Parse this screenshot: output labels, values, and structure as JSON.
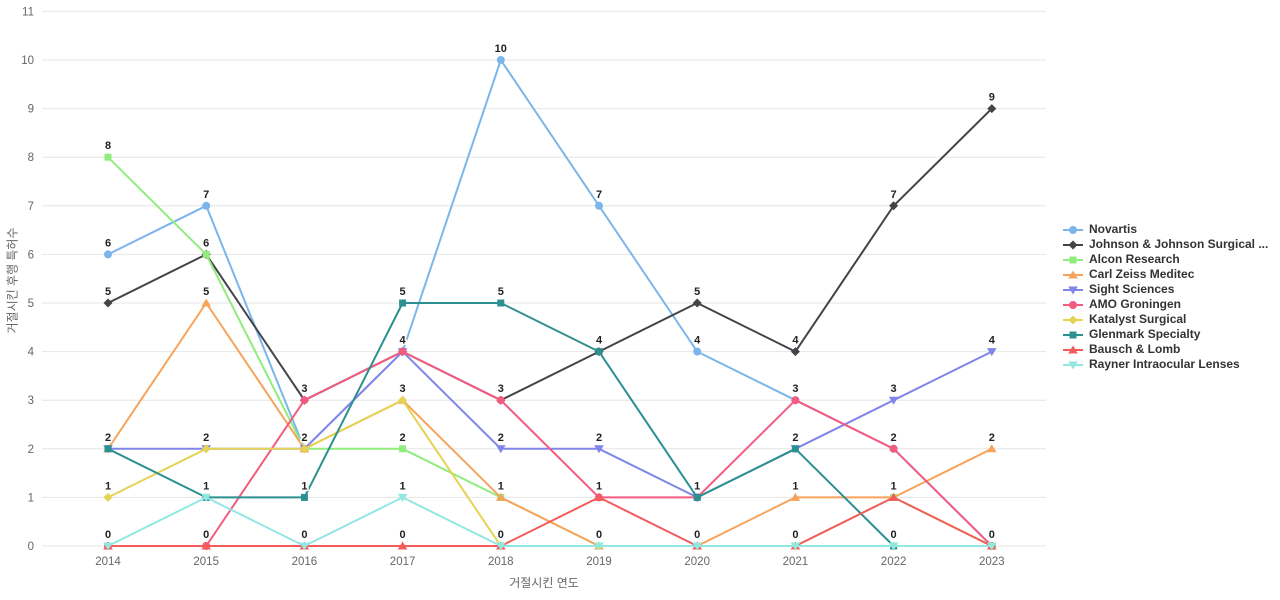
{
  "chart_data": {
    "type": "line",
    "title": "",
    "xlabel": "거절시킨 연도",
    "ylabel": "거절시킨 후행 특허수",
    "x": [
      2014,
      2015,
      2016,
      2017,
      2018,
      2019,
      2020,
      2021,
      2022,
      2023
    ],
    "ylim": [
      0,
      11
    ],
    "yticks": [
      0,
      1,
      2,
      3,
      4,
      5,
      6,
      7,
      8,
      9,
      10,
      11
    ],
    "grid": "horizontal",
    "legend_position": "right",
    "data_labels": true,
    "series": [
      {
        "name": "Novartis",
        "color": "#7cb5ec",
        "marker": "circle",
        "values": [
          6,
          7,
          2,
          4,
          10,
          7,
          4,
          3,
          2,
          0
        ]
      },
      {
        "name": "Johnson & Johnson Surgical ...",
        "color": "#434348",
        "marker": "diamond",
        "values": [
          5,
          6,
          3,
          4,
          3,
          4,
          5,
          4,
          7,
          9
        ]
      },
      {
        "name": "Alcon Research",
        "color": "#90ed7d",
        "marker": "square",
        "values": [
          8,
          6,
          2,
          2,
          1,
          0,
          0,
          0,
          1,
          0
        ]
      },
      {
        "name": "Carl Zeiss Meditec",
        "color": "#f7a35c",
        "marker": "triangle",
        "values": [
          2,
          5,
          2,
          3,
          1,
          0,
          0,
          1,
          1,
          2
        ]
      },
      {
        "name": "Sight Sciences",
        "color": "#8085e9",
        "marker": "triangle-down",
        "values": [
          2,
          2,
          2,
          4,
          2,
          2,
          1,
          2,
          3,
          4
        ]
      },
      {
        "name": "AMO Groningen",
        "color": "#f15c80",
        "marker": "circle",
        "values": [
          0,
          0,
          3,
          4,
          3,
          1,
          1,
          3,
          2,
          0
        ]
      },
      {
        "name": "Katalyst Surgical",
        "color": "#e4d354",
        "marker": "diamond",
        "values": [
          1,
          2,
          2,
          3,
          0,
          0,
          0,
          0,
          0,
          0
        ]
      },
      {
        "name": "Glenmark Specialty",
        "color": "#2b908f",
        "marker": "square",
        "values": [
          2,
          1,
          1,
          5,
          5,
          4,
          1,
          2,
          0,
          0
        ]
      },
      {
        "name": "Bausch & Lomb",
        "color": "#f45b5b",
        "marker": "triangle",
        "values": [
          0,
          0,
          0,
          0,
          0,
          1,
          0,
          0,
          1,
          0
        ]
      },
      {
        "name": "Rayner Intraocular Lenses",
        "color": "#91e8e1",
        "marker": "triangle-down",
        "values": [
          0,
          1,
          0,
          1,
          0,
          0,
          0,
          0,
          0,
          0
        ]
      }
    ]
  },
  "style": {
    "grid_color": "#e6e6e6",
    "tick_label_color": "#666666",
    "axis_title_color": "#666666",
    "data_label_color": "#222222",
    "legend_text_color": "#333333",
    "background": "#ffffff"
  }
}
